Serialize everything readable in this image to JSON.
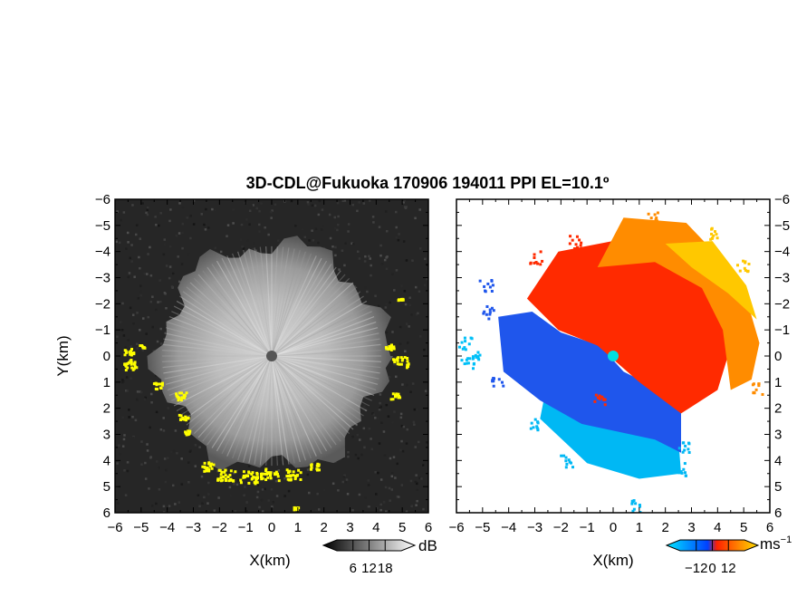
{
  "chart_data": {
    "type": "heatmap",
    "title": "3D-CDL@Fukuoka 170906 194011 PPI EL=10.1º",
    "panels": [
      {
        "name": "reflectivity",
        "xlabel": "X(km)",
        "ylabel": "Y(km)",
        "xlim": [
          -6,
          6
        ],
        "ylim": [
          -6,
          6
        ],
        "xticks": [
          -6,
          -5,
          -4,
          -3,
          -2,
          -1,
          0,
          1,
          2,
          3,
          4,
          5,
          6
        ],
        "yticks": [
          -6,
          -5,
          -4,
          -3,
          -2,
          -1,
          0,
          1,
          2,
          3,
          4,
          5,
          6
        ],
        "colorbar": {
          "unit": "dB",
          "ticks": [
            "6",
            "12",
            "18"
          ],
          "range": [
            0,
            24
          ],
          "colors": [
            "#000000",
            "#ffffff"
          ]
        },
        "highlight_color": "#ffff00"
      },
      {
        "name": "doppler-velocity",
        "xlabel": "X(km)",
        "xlim": [
          -6,
          6
        ],
        "ylim": [
          -6,
          6
        ],
        "xticks": [
          -6,
          -5,
          -4,
          -3,
          -2,
          -1,
          0,
          1,
          2,
          3,
          4,
          5,
          6
        ],
        "yticks": [
          -6,
          -5,
          -4,
          -3,
          -2,
          -1,
          0,
          1,
          2,
          3,
          4,
          5,
          6
        ],
        "colorbar": {
          "unit": "ms",
          "unit_exponent": "−1",
          "ticks": [
            "−12",
            "0",
            "12"
          ],
          "range": [
            -18,
            18
          ],
          "colors": [
            "#00e6ff",
            "#0040ff",
            "#ff2000",
            "#ffe000"
          ]
        },
        "radar_site": [
          0,
          0
        ]
      }
    ]
  },
  "labels": {
    "left_xticks": [
      "−6",
      "−5",
      "−4",
      "−3",
      "−2",
      "−1",
      "0",
      "1",
      "2",
      "3",
      "4",
      "5",
      "6"
    ],
    "left_yticks": [
      "6",
      "5",
      "4",
      "3",
      "2",
      "1",
      "0",
      "−1",
      "−2",
      "−3",
      "−4",
      "−5",
      "−6"
    ],
    "right_xticks": [
      "−6",
      "−5",
      "−4",
      "−3",
      "−2",
      "−1",
      "0",
      "1",
      "2",
      "3",
      "4",
      "5",
      "6"
    ],
    "right_yticks": [
      "6",
      "5",
      "4",
      "3",
      "2",
      "1",
      "0",
      "−1",
      "−2",
      "−3",
      "−4",
      "−5",
      "−6"
    ]
  }
}
